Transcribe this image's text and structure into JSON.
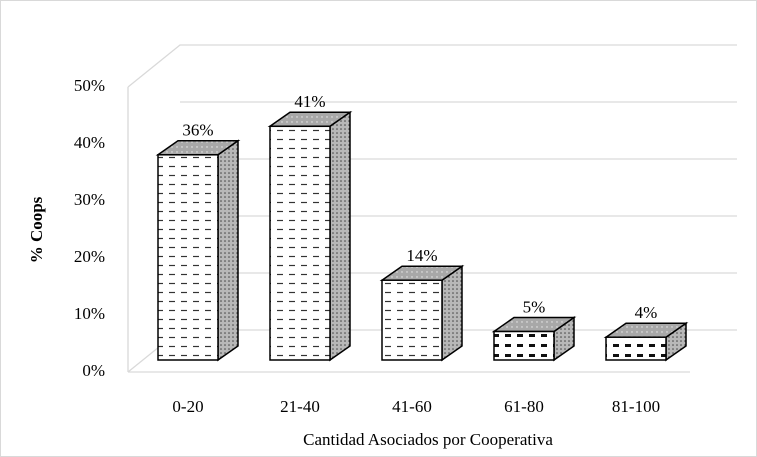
{
  "chart_data": {
    "type": "bar3d",
    "x_label": "Cantidad Asociados por Cooperativa",
    "y_label": "% Coops",
    "categories": [
      "0-20",
      "21-40",
      "41-60",
      "61-80",
      "81-100"
    ],
    "values": [
      36,
      41,
      14,
      5,
      4
    ],
    "value_labels": [
      "36%",
      "41%",
      "14%",
      "5%",
      "4%"
    ],
    "ylim": [
      0,
      50
    ],
    "yticks": [
      {
        "value": 0,
        "label": "0%"
      },
      {
        "value": 10,
        "label": "10%"
      },
      {
        "value": 20,
        "label": "20%"
      },
      {
        "value": 30,
        "label": "30%"
      },
      {
        "value": 40,
        "label": "40%"
      },
      {
        "value": 50,
        "label": "50%"
      }
    ],
    "grid": true
  }
}
